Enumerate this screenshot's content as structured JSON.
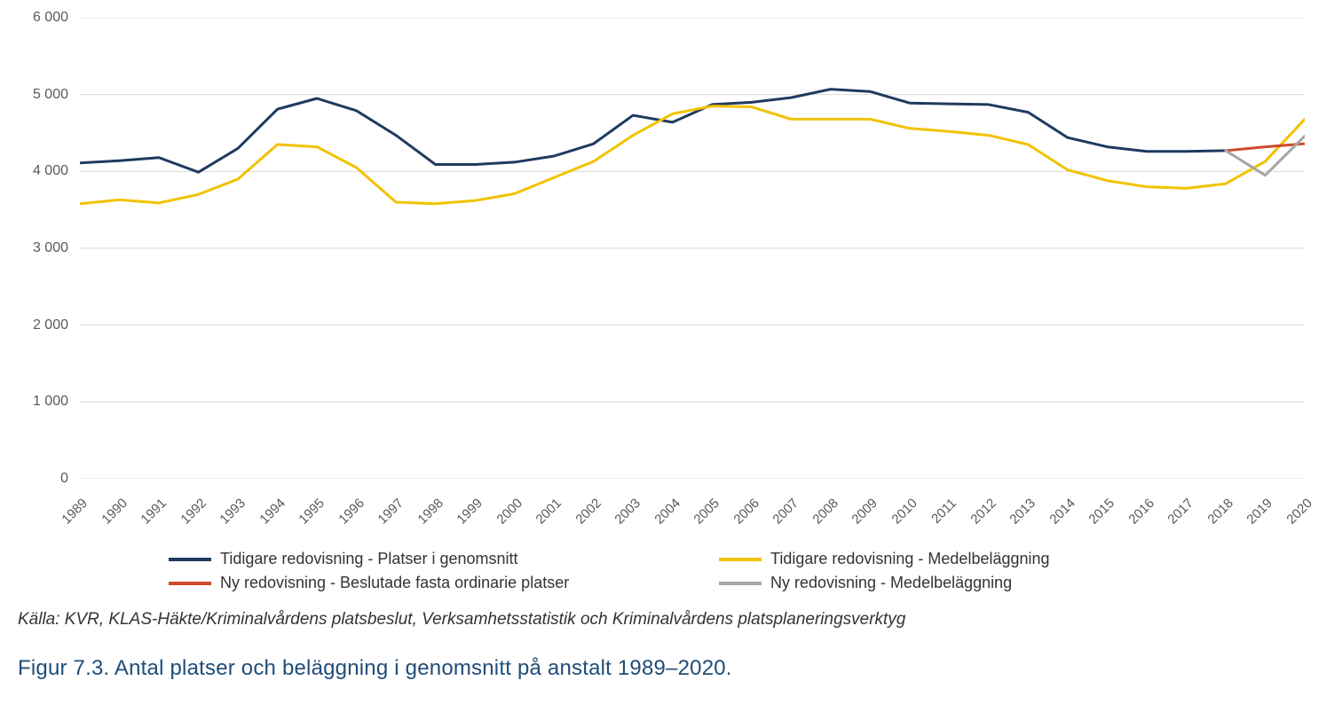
{
  "chart": {
    "type": "line",
    "background_color": "#ffffff",
    "grid_color": "#d9d9d9",
    "axis_color": "#bfbfbf",
    "tick_color": "#bfbfbf",
    "label_color": "#595959",
    "label_fontsize": 16,
    "ylim": [
      0,
      6000
    ],
    "ytick_step": 1000,
    "yticks": [
      "0",
      "1 000",
      "2 000",
      "3 000",
      "4 000",
      "5 000",
      "6 000"
    ],
    "xlim": [
      1989,
      2020
    ],
    "x_categories": [
      "1989",
      "1990",
      "1991",
      "1992",
      "1993",
      "1994",
      "1995",
      "1996",
      "1997",
      "1998",
      "1999",
      "2000",
      "2001",
      "2002",
      "2003",
      "2004",
      "2005",
      "2006",
      "2007",
      "2008",
      "2009",
      "2010",
      "2011",
      "2012",
      "2013",
      "2014",
      "2015",
      "2016",
      "2017",
      "2018",
      "2019",
      "2020"
    ],
    "x_label_rotation_deg": -45,
    "line_width": 3,
    "series": [
      {
        "name": "Tidigare redovisning - Platser i genomsnitt",
        "color": "#1f3a5f",
        "values": [
          4110,
          4140,
          4180,
          3990,
          4300,
          4810,
          4950,
          4790,
          4470,
          4090,
          4090,
          4120,
          4200,
          4360,
          4730,
          4640,
          4870,
          4900,
          4960,
          5070,
          5040,
          4890,
          4880,
          4870,
          4770,
          4440,
          4320,
          4260,
          4260,
          4270,
          null,
          null
        ]
      },
      {
        "name": "Tidigare redovisning - Medelbeläggning",
        "color": "#f2c200",
        "values": [
          3580,
          3630,
          3590,
          3700,
          3900,
          4350,
          4320,
          4050,
          3600,
          3580,
          3620,
          3710,
          3920,
          4130,
          4470,
          4750,
          4850,
          4840,
          4680,
          4680,
          4680,
          4560,
          4520,
          4470,
          4350,
          4020,
          3880,
          3800,
          3780,
          3840,
          4130,
          4680
        ]
      },
      {
        "name": "Ny redovisning - Beslutade fasta ordinarie platser",
        "color": "#d1492e",
        "values": [
          null,
          null,
          null,
          null,
          null,
          null,
          null,
          null,
          null,
          null,
          null,
          null,
          null,
          null,
          null,
          null,
          null,
          null,
          null,
          null,
          null,
          null,
          null,
          null,
          null,
          null,
          null,
          null,
          null,
          4270,
          4320,
          4360
        ]
      },
      {
        "name": "Ny redovisning - Medelbeläggning",
        "color": "#a6a6a6",
        "values": [
          null,
          null,
          null,
          null,
          null,
          null,
          null,
          null,
          null,
          null,
          null,
          null,
          null,
          null,
          null,
          null,
          null,
          null,
          null,
          null,
          null,
          null,
          null,
          null,
          null,
          null,
          null,
          null,
          null,
          4270,
          3950,
          4460
        ]
      }
    ]
  },
  "legend": {
    "items": [
      {
        "label": "Tidigare redovisning - Platser i genomsnitt",
        "color": "#1f3a5f"
      },
      {
        "label": "Tidigare redovisning - Medelbeläggning",
        "color": "#f2c200"
      },
      {
        "label": "Ny redovisning - Beslutade fasta ordinarie platser",
        "color": "#d1492e"
      },
      {
        "label": "Ny redovisning - Medelbeläggning",
        "color": "#a6a6a6"
      }
    ],
    "fontsize": 18,
    "label_color": "#333333"
  },
  "source_text": "Källa: KVR, KLAS-Häkte/Kriminalvårdens platsbeslut, Verksamhetsstatistik och Kriminalvårdens platsplaneringsverktyg",
  "caption_text": "Figur 7.3. Antal platser och beläggning i genomsnitt på anstalt 1989–2020.",
  "caption_color": "#204d77"
}
